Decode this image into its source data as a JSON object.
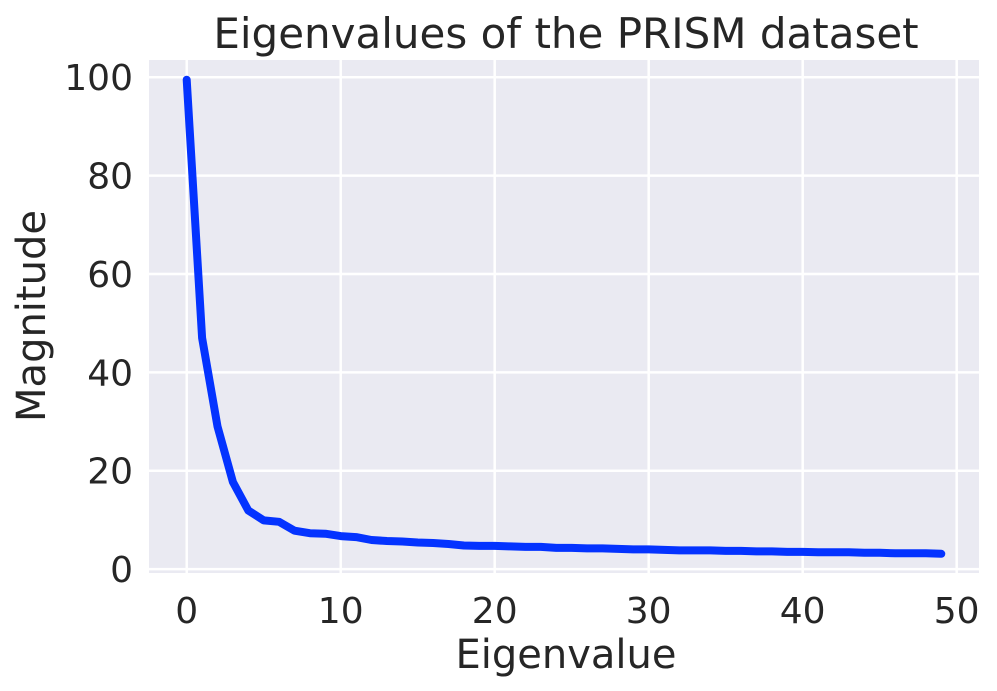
{
  "chart_data": {
    "type": "line",
    "title": "Eigenvalues of the PRISM dataset",
    "xlabel": "Eigenvalue",
    "ylabel": "Magnitude",
    "xlim": [
      -2.45,
      51.45
    ],
    "ylim": [
      -0.8,
      103.5
    ],
    "x_ticks": [
      0,
      10,
      20,
      30,
      40,
      50
    ],
    "y_ticks": [
      0,
      20,
      40,
      60,
      80,
      100
    ],
    "grid": true,
    "background_color": "#eaeaf2",
    "grid_color": "#ffffff",
    "series": [
      {
        "color": "#0433ff",
        "x": [
          0,
          1,
          2,
          3,
          4,
          5,
          6,
          7,
          8,
          9,
          10,
          11,
          12,
          13,
          14,
          15,
          16,
          17,
          18,
          19,
          20,
          21,
          22,
          23,
          24,
          25,
          26,
          27,
          28,
          29,
          30,
          31,
          32,
          33,
          34,
          35,
          36,
          37,
          38,
          39,
          40,
          41,
          42,
          43,
          44,
          45,
          46,
          47,
          48,
          49
        ],
        "values": [
          99.5,
          47.0,
          29.0,
          17.7,
          11.9,
          9.9,
          9.6,
          7.8,
          7.3,
          7.2,
          6.7,
          6.5,
          5.9,
          5.7,
          5.6,
          5.4,
          5.3,
          5.1,
          4.8,
          4.7,
          4.7,
          4.6,
          4.5,
          4.5,
          4.3,
          4.3,
          4.2,
          4.2,
          4.1,
          4.0,
          4.0,
          3.9,
          3.8,
          3.8,
          3.8,
          3.7,
          3.7,
          3.6,
          3.6,
          3.5,
          3.5,
          3.4,
          3.4,
          3.4,
          3.3,
          3.3,
          3.2,
          3.2,
          3.2,
          3.1
        ]
      }
    ]
  }
}
